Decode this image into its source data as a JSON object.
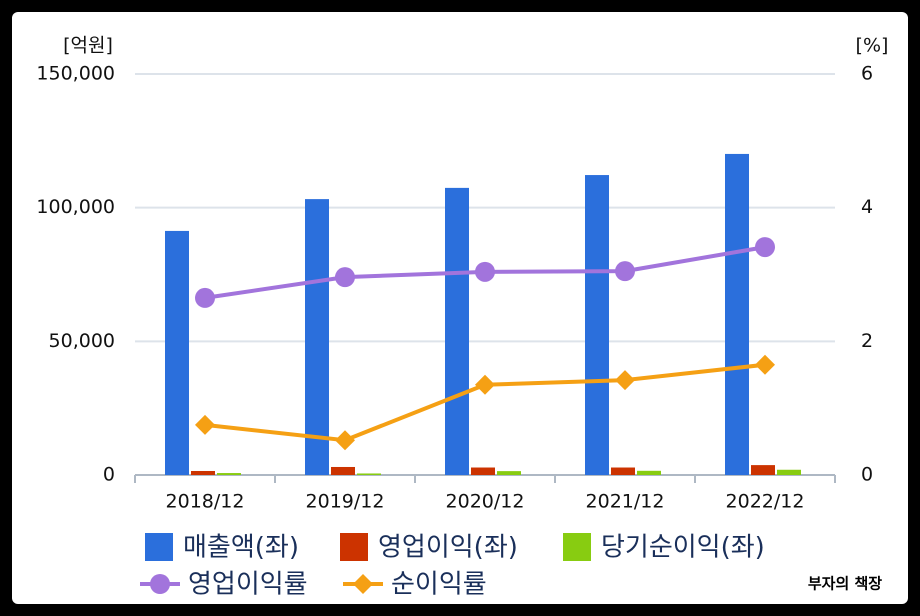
{
  "chart_data": {
    "type": "bar-line",
    "ylabel": "[억원]",
    "y2label": "[%]",
    "annotation": "부자의 책장",
    "categories": [
      "2018/12",
      "2019/12",
      "2020/12",
      "2021/12",
      "2022/12"
    ],
    "series": [
      {
        "name": "매출액(좌)",
        "type": "bar",
        "color": "#2b6fdc",
        "values": [
          91300,
          103200,
          107400,
          112200,
          120100
        ]
      },
      {
        "name": "영업이익(좌)",
        "type": "bar",
        "color": "#cc3300",
        "values": [
          1500,
          3000,
          2800,
          2800,
          3700
        ]
      },
      {
        "name": "당기순이익(좌)",
        "type": "bar",
        "color": "#88cc11",
        "values": [
          730,
          570,
          1450,
          1570,
          1960
        ]
      },
      {
        "name": "영업이익률",
        "type": "line",
        "axis": "y2",
        "marker": "circle",
        "color": "#a274dc",
        "values": [
          2.65,
          2.96,
          3.04,
          3.05,
          3.41
        ]
      },
      {
        "name": "순이익률",
        "type": "line",
        "axis": "y2",
        "marker": "diamond",
        "color": "#f5a014",
        "values": [
          0.75,
          0.52,
          1.35,
          1.42,
          1.65
        ]
      }
    ],
    "ylim": [
      0,
      150000
    ],
    "yticks": [
      0,
      {
        "value": 50000,
        "label": "50,000"
      },
      {
        "value": 100000,
        "label": "100,000"
      },
      {
        "value": 150000,
        "label": "150,000"
      }
    ],
    "y2lim": [
      0,
      6
    ],
    "y2ticks": [
      0,
      2,
      4,
      6
    ],
    "grid": true
  }
}
